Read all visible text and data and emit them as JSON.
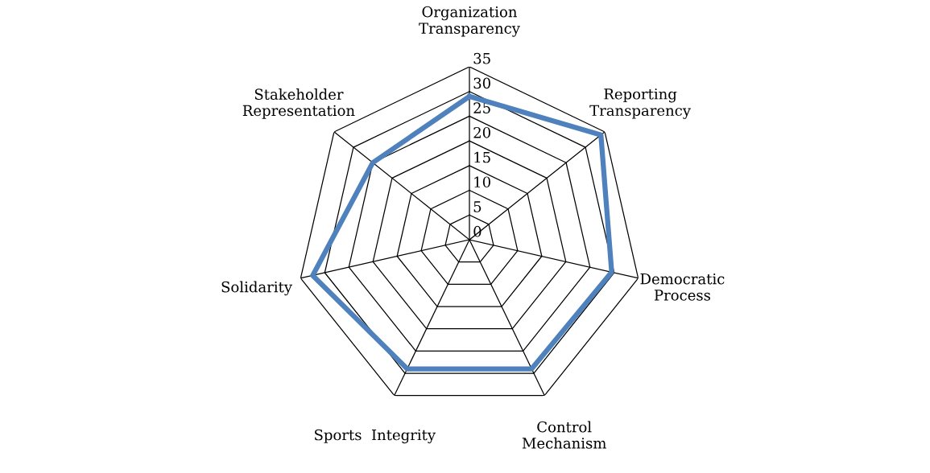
{
  "chart_data": {
    "type": "radar",
    "categories": [
      "Organization\nTransparency",
      "Reporting\nTransparency",
      "Democratic\nProcess",
      "Control\nMechanism",
      "Sports  Integrity",
      "Solidarity",
      "Stakeholder\nRepresentation"
    ],
    "series": [
      {
        "color": "#4f81bd",
        "values": [
          29,
          34,
          29.5,
          29,
          29,
          32.5,
          25
        ]
      }
    ],
    "ylim": [
      0,
      35
    ],
    "yticks": [
      0,
      5,
      10,
      15,
      20,
      25,
      30,
      35
    ],
    "grid": true,
    "marker": "none",
    "line_style": "solid"
  }
}
